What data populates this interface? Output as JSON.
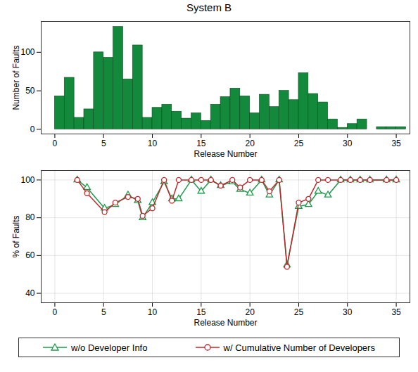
{
  "chart_data": [
    {
      "type": "bar",
      "title": "System B",
      "xlabel": "Release Number",
      "ylabel": "Number of Faults",
      "bins": [
        0,
        1,
        2,
        3,
        4,
        5,
        6,
        7,
        8,
        9,
        10,
        11,
        12,
        13,
        14,
        15,
        16,
        17,
        18,
        19,
        20,
        21,
        22,
        23,
        24,
        25,
        26,
        27,
        28,
        29,
        30,
        31,
        32,
        33,
        34,
        35,
        36
      ],
      "values": [
        43,
        67,
        15,
        26,
        100,
        93,
        133,
        65,
        109,
        15,
        28,
        32,
        23,
        14,
        21,
        11,
        32,
        42,
        53,
        43,
        21,
        45,
        29,
        50,
        38,
        73,
        46,
        35,
        13,
        2,
        7,
        13,
        0,
        3,
        3,
        3
      ],
      "color": "#138a3b",
      "xlim": [
        -1.4,
        36.4
      ],
      "xticks": [
        0,
        5,
        10,
        15,
        20,
        25,
        30,
        35
      ],
      "ylim": [
        -6,
        140
      ],
      "yticks": [
        0,
        50,
        100
      ],
      "grid": false
    },
    {
      "type": "line",
      "xlabel": "Release Number",
      "ylabel": "% of Faults",
      "x": [
        2.3,
        3.3,
        5.1,
        6.2,
        7.5,
        8.5,
        9,
        10,
        11.2,
        12,
        12.7,
        14,
        15,
        16,
        17,
        18.2,
        19,
        20,
        21.2,
        22,
        23,
        23.8,
        25,
        26,
        27,
        28,
        29.3,
        30.3,
        31.3,
        32.3,
        34,
        35
      ],
      "series": [
        {
          "name": "w/o Developer Info",
          "color": "#1b9a4a",
          "marker": "triangle",
          "values": [
            100,
            96,
            85,
            87,
            92,
            89,
            80,
            88,
            99,
            90,
            90,
            100,
            94,
            100,
            97,
            99,
            95,
            93,
            100,
            92,
            100,
            55,
            86,
            87,
            94,
            92,
            100,
            100,
            100,
            100,
            100,
            100
          ]
        },
        {
          "name": "w/ Cumulative Number of Developers",
          "color": "#c0282d",
          "marker": "circle",
          "values": [
            100,
            93,
            83,
            88,
            91,
            90,
            81,
            85,
            100,
            89,
            100,
            100,
            100,
            100,
            97,
            100,
            96,
            100,
            100,
            94,
            100,
            54,
            88,
            90,
            100,
            100,
            100,
            100,
            100,
            100,
            100,
            100
          ]
        }
      ],
      "xlim": [
        -1.4,
        36.4
      ],
      "xticks": [
        0,
        5,
        10,
        15,
        20,
        25,
        30,
        35
      ],
      "ylim": [
        35,
        105
      ],
      "yticks": [
        40,
        60,
        80,
        100
      ],
      "grid": true,
      "legend": "bottom"
    }
  ]
}
